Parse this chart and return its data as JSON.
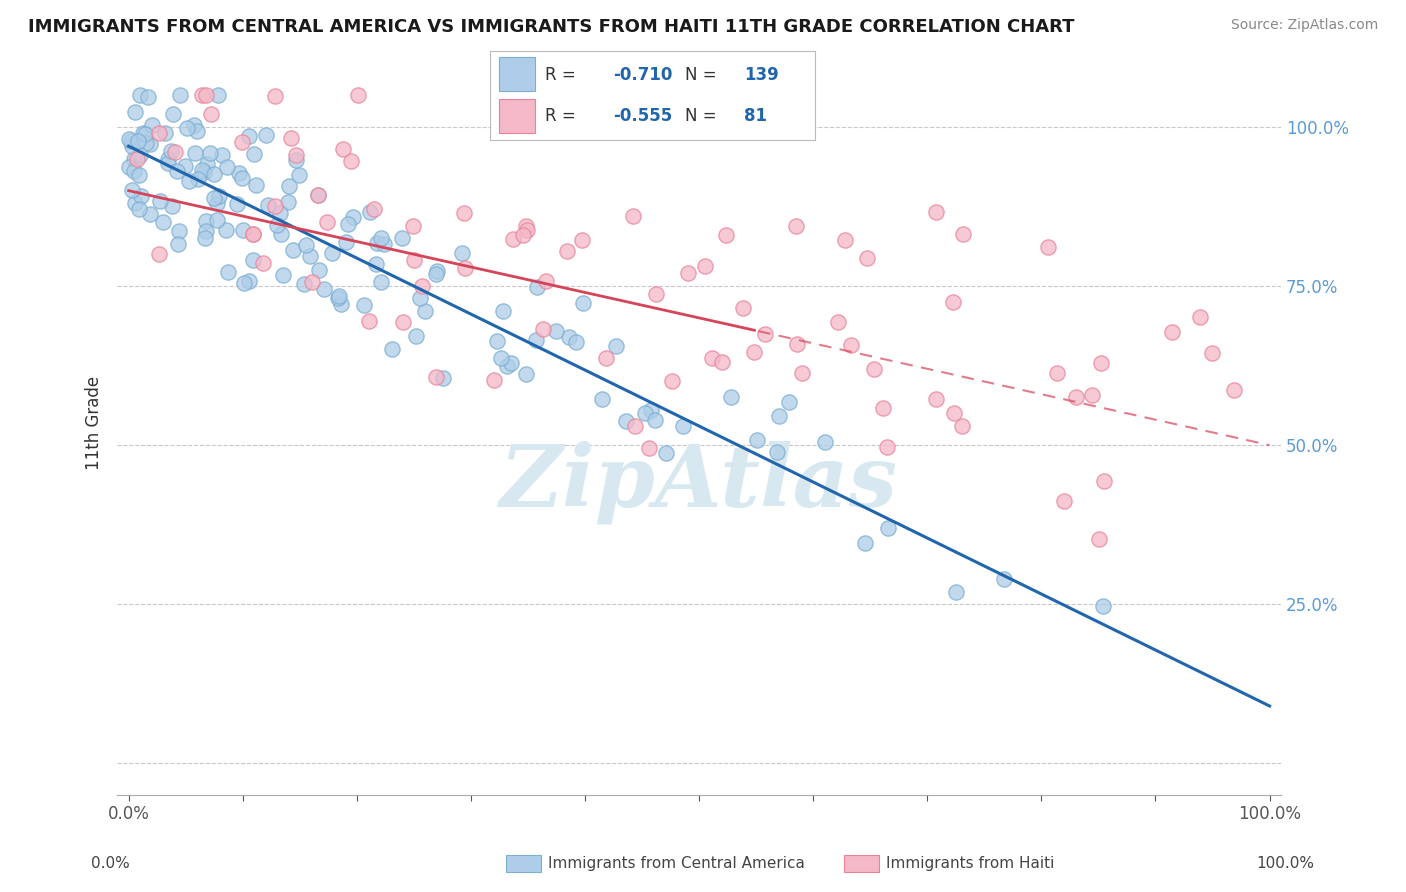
{
  "title": "IMMIGRANTS FROM CENTRAL AMERICA VS IMMIGRANTS FROM HAITI 11TH GRADE CORRELATION CHART",
  "source": "Source: ZipAtlas.com",
  "ylabel": "11th Grade",
  "legend_blue_r": "-0.710",
  "legend_blue_n": "139",
  "legend_pink_r": "-0.555",
  "legend_pink_n": "81",
  "blue_color": "#aecde8",
  "blue_edge_color": "#7baed1",
  "pink_color": "#f4b8c8",
  "pink_edge_color": "#e8849a",
  "blue_line_color": "#2166ac",
  "pink_line_color": "#d6445a",
  "pink_dash_color": "#d6445a",
  "tick_color": "#5b9bd5",
  "grid_color": "#c8c8c8",
  "watermark_color": "#d8e8f0",
  "ylim_min": -0.05,
  "ylim_max": 1.12,
  "xlim_min": -0.01,
  "xlim_max": 1.01,
  "blue_slope": -0.88,
  "blue_intercept": 0.97,
  "pink_slope": -0.4,
  "pink_intercept": 0.9,
  "blue_noise": 0.065,
  "pink_noise": 0.13
}
